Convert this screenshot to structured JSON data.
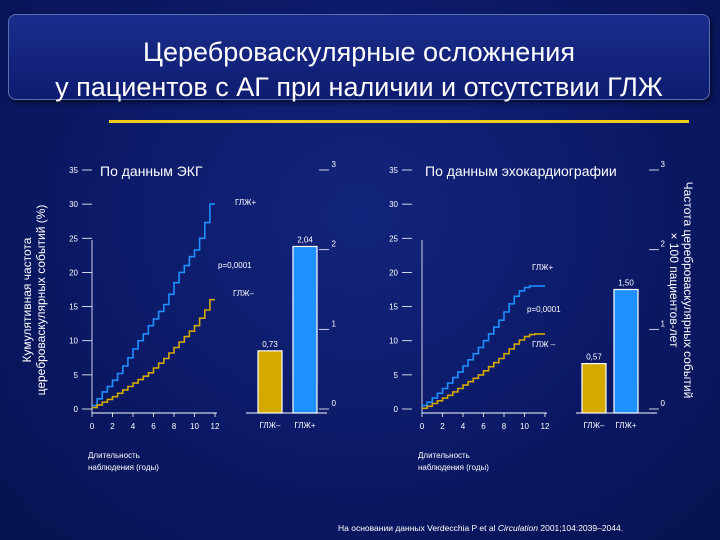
{
  "title": {
    "line1": "Цереброваскулярные осложнения",
    "line2": "у пациентов с АГ при наличии и отсутствии ГЛЖ"
  },
  "left_axis_label": {
    "line1": "Кумулятивная частота",
    "line2": "цереброваскулярных событий (%)"
  },
  "right_axis_label": {
    "line1": "Частота цереброваскулярных событий",
    "line2": "× 100 пациентов-лет"
  },
  "source": {
    "prefix": "На основании данных Verdecchia P et al ",
    "journal": "Circulation",
    "suffix": " 2001;104:2039–2044."
  },
  "colors": {
    "glzh_plus": "#1e90ff",
    "glzh_minus": "#d4a900",
    "axis": "#ffffff",
    "rule": "#f0cc1a"
  },
  "chart_data": [
    {
      "type": "line",
      "title": "По данным ЭКГ",
      "xlabel_line1": "Длительность",
      "xlabel_line2": "наблюдения (годы)",
      "xticks": [
        "0",
        "2",
        "4",
        "6",
        "8",
        "10",
        "12"
      ],
      "yticks": [
        "0",
        "5",
        "10",
        "15",
        "20",
        "25",
        "30",
        "35"
      ],
      "xlim": [
        0,
        12
      ],
      "ylim": [
        0,
        35
      ],
      "p_value": "p=0,0001",
      "series": [
        {
          "name": "ГЛЖ+",
          "x": [
            0,
            0.5,
            1,
            1.5,
            2,
            2.5,
            3,
            3.5,
            4,
            4.5,
            5,
            5.5,
            6,
            6.5,
            7,
            7.5,
            8,
            8.5,
            9,
            9.5,
            10,
            10.5,
            11,
            11.5,
            12
          ],
          "y": [
            0.5,
            1.5,
            2.5,
            3.3,
            4.2,
            5.2,
            6.3,
            7.5,
            8.8,
            10,
            11,
            12.2,
            13.2,
            14.3,
            15.3,
            16.8,
            18.5,
            20,
            21,
            22.3,
            23.3,
            25,
            27.3,
            30,
            30
          ]
        },
        {
          "name": "ГЛЖ–",
          "x": [
            0,
            0.5,
            1,
            1.5,
            2,
            2.5,
            3,
            3.5,
            4,
            4.5,
            5,
            5.5,
            6,
            6.5,
            7,
            7.5,
            8,
            8.5,
            9,
            9.5,
            10,
            10.5,
            11,
            11.5,
            12
          ],
          "y": [
            0.2,
            0.6,
            1,
            1.4,
            1.8,
            2.3,
            2.8,
            3.3,
            3.8,
            4.3,
            4.8,
            5.3,
            6,
            6.7,
            7.4,
            8.2,
            9,
            9.8,
            10.6,
            11.4,
            12.2,
            13.3,
            14.5,
            16,
            16
          ]
        }
      ],
      "bars": {
        "categories": [
          "ГЛЖ–",
          "ГЛЖ+"
        ],
        "values": [
          0.73,
          2.04
        ],
        "labels": [
          "0,73",
          "2,04"
        ],
        "yticks": [
          "0",
          "1",
          "2",
          "3"
        ],
        "ylim": [
          0,
          3
        ]
      }
    },
    {
      "type": "line",
      "title": "По данным эхокардиографии",
      "xlabel_line1": "Длительность",
      "xlabel_line2": "наблюдения (годы)",
      "xticks": [
        "0",
        "2",
        "4",
        "6",
        "8",
        "10",
        "12"
      ],
      "yticks": [
        "0",
        "5",
        "10",
        "15",
        "20",
        "25",
        "30",
        "35"
      ],
      "xlim": [
        0,
        12
      ],
      "ylim": [
        0,
        35
      ],
      "p_value": "p=0,0001",
      "series": [
        {
          "name": "ГЛЖ+",
          "x": [
            0,
            0.5,
            1,
            1.5,
            2,
            2.5,
            3,
            3.5,
            4,
            4.5,
            5,
            5.5,
            6,
            6.5,
            7,
            7.5,
            8,
            8.5,
            9,
            9.5,
            10,
            10.5,
            11,
            11.5,
            12
          ],
          "y": [
            0.5,
            1,
            1.6,
            2.3,
            3,
            3.8,
            4.6,
            5.4,
            6.3,
            7.2,
            8.1,
            9,
            10,
            11,
            12,
            13,
            14.2,
            15.4,
            16.5,
            17.3,
            17.8,
            18,
            18,
            18,
            18
          ]
        },
        {
          "name": "ГЛЖ –",
          "x": [
            0,
            0.5,
            1,
            1.5,
            2,
            2.5,
            3,
            3.5,
            4,
            4.5,
            5,
            5.5,
            6,
            6.5,
            7,
            7.5,
            8,
            8.5,
            9,
            9.5,
            10,
            10.5,
            11,
            11.5,
            12
          ],
          "y": [
            0.1,
            0.4,
            0.8,
            1.2,
            1.6,
            2,
            2.5,
            3,
            3.5,
            4,
            4.5,
            5,
            5.6,
            6.2,
            6.8,
            7.4,
            8.1,
            8.8,
            9.5,
            10.1,
            10.6,
            10.9,
            11,
            11,
            11
          ]
        }
      ],
      "bars": {
        "categories": [
          "ГЛЖ–",
          "ГЛЖ+"
        ],
        "values": [
          0.57,
          1.5
        ],
        "labels": [
          "0,57",
          "1,50"
        ],
        "yticks": [
          "0",
          "1",
          "2",
          "3"
        ],
        "ylim": [
          0,
          3
        ]
      }
    }
  ]
}
